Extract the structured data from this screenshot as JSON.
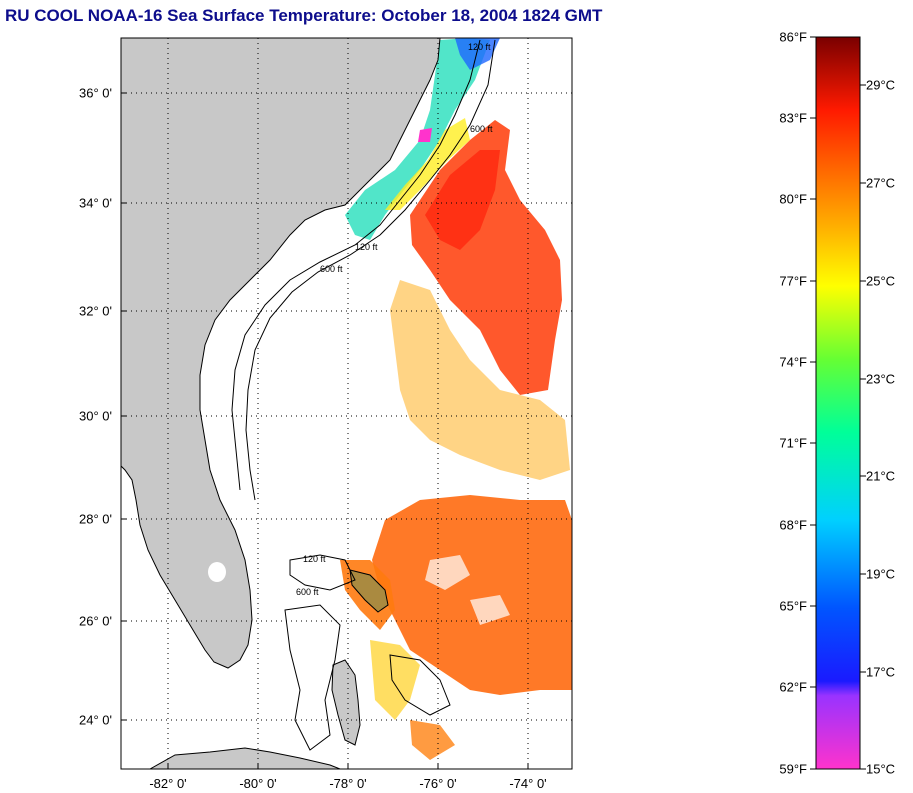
{
  "title": "RU COOL  NOAA-16  Sea Surface Temperature:  October 18, 2004 1824 GMT",
  "map": {
    "lat_labels": [
      "36° 0'",
      "34° 0'",
      "32° 0'",
      "30° 0'",
      "28° 0'",
      "26° 0'",
      "24° 0'"
    ],
    "lon_labels": [
      "-82° 0'",
      "-80° 0'",
      "-78° 0'",
      "-76° 0'",
      "-74° 0'"
    ],
    "contour_labels": [
      "120 ft",
      "600 ft",
      "120 ft",
      "600 ft",
      "120 ft",
      "600 ft"
    ],
    "colors": {
      "land": "#c8c8c8",
      "ocean_no_data": "#ffffff",
      "warm_water": "#ff6a00"
    }
  },
  "colorbar": {
    "fahrenheit": [
      "86°F",
      "83°F",
      "80°F",
      "77°F",
      "74°F",
      "71°F",
      "68°F",
      "65°F",
      "62°F",
      "59°F"
    ],
    "celsius": [
      "29°C",
      "27°C",
      "25°C",
      "23°C",
      "21°C",
      "19°C",
      "17°C",
      "15°C"
    ],
    "range_f": [
      59,
      86
    ],
    "range_c": [
      15,
      30
    ]
  }
}
